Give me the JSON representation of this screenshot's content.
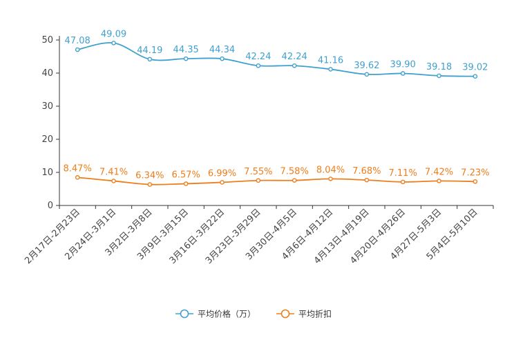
{
  "chart_data": {
    "type": "line",
    "categories": [
      "2月17日-2月23日",
      "2月24日-3月1日",
      "3月2日-3月8日",
      "3月9日-3月15日",
      "3月16日-3月22日",
      "3月23日-3月29日",
      "3月30日-4月5日",
      "4月6日-4月12日",
      "4月13日-4月19日",
      "4月20日-4月26日",
      "4月27日-5月3日",
      "5月4日-5月10日"
    ],
    "series": [
      {
        "name": "平均价格（万）",
        "color": "#3fa0cf",
        "values": [
          47.08,
          49.09,
          44.19,
          44.35,
          44.34,
          42.24,
          42.24,
          41.16,
          39.62,
          39.9,
          39.18,
          39.02
        ],
        "labels": [
          "47.08",
          "49.09",
          "44.19",
          "44.35",
          "44.34",
          "42.24",
          "42.24",
          "41.16",
          "39.62",
          "39.90",
          "39.18",
          "39.02"
        ]
      },
      {
        "name": "平均折扣",
        "color": "#ef7d1a",
        "values": [
          8.47,
          7.41,
          6.34,
          6.57,
          6.99,
          7.55,
          7.58,
          8.04,
          7.68,
          7.11,
          7.42,
          7.23
        ],
        "labels": [
          "8.47%",
          "7.41%",
          "6.34%",
          "6.57%",
          "6.99%",
          "7.55%",
          "7.58%",
          "8.04%",
          "7.68%",
          "7.11%",
          "7.42%",
          "7.23%"
        ]
      }
    ],
    "yticks": [
      0,
      10,
      20,
      30,
      40,
      50
    ],
    "ylim": [
      0,
      50
    ],
    "grid": false,
    "legend_position": "bottom-center",
    "title": "",
    "xlabel": "",
    "ylabel": ""
  }
}
